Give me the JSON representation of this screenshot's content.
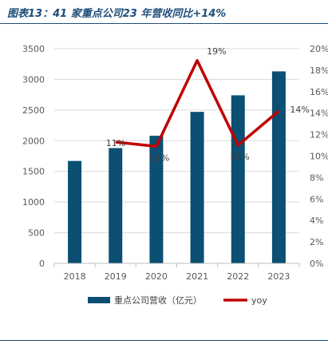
{
  "title": "图表13：41 家重点公司23 年营收同比+14%",
  "chart_data": {
    "type": "bar",
    "categories": [
      "2018",
      "2019",
      "2020",
      "2021",
      "2022",
      "2023"
    ],
    "series": [
      {
        "name": "重点公司营收（亿元）",
        "type": "bar",
        "axis": "left",
        "values": [
          1670,
          1880,
          2080,
          2470,
          2740,
          3130
        ]
      },
      {
        "name": "yoy",
        "type": "line",
        "axis": "right",
        "values": [
          null,
          11.3,
          10.9,
          18.9,
          11.0,
          14.2
        ],
        "data_labels": [
          "",
          "11%",
          "11%",
          "19%",
          "11%",
          "14%"
        ]
      }
    ],
    "y_left": {
      "min": 0,
      "max": 3500,
      "ticks": [
        "0",
        "500",
        "1000",
        "1500",
        "2000",
        "2500",
        "3000",
        "3500"
      ]
    },
    "y_right": {
      "min": 0,
      "max": 20,
      "ticks": [
        "0%",
        "2%",
        "4%",
        "6%",
        "8%",
        "10%",
        "12%",
        "14%",
        "16%",
        "18%",
        "20%"
      ]
    },
    "grid": true,
    "legend": "bottom",
    "colors": {
      "bar": "#0b4f73",
      "line": "#c00000",
      "grid": "#d9d9d9",
      "rule": "#1f4e79"
    }
  }
}
